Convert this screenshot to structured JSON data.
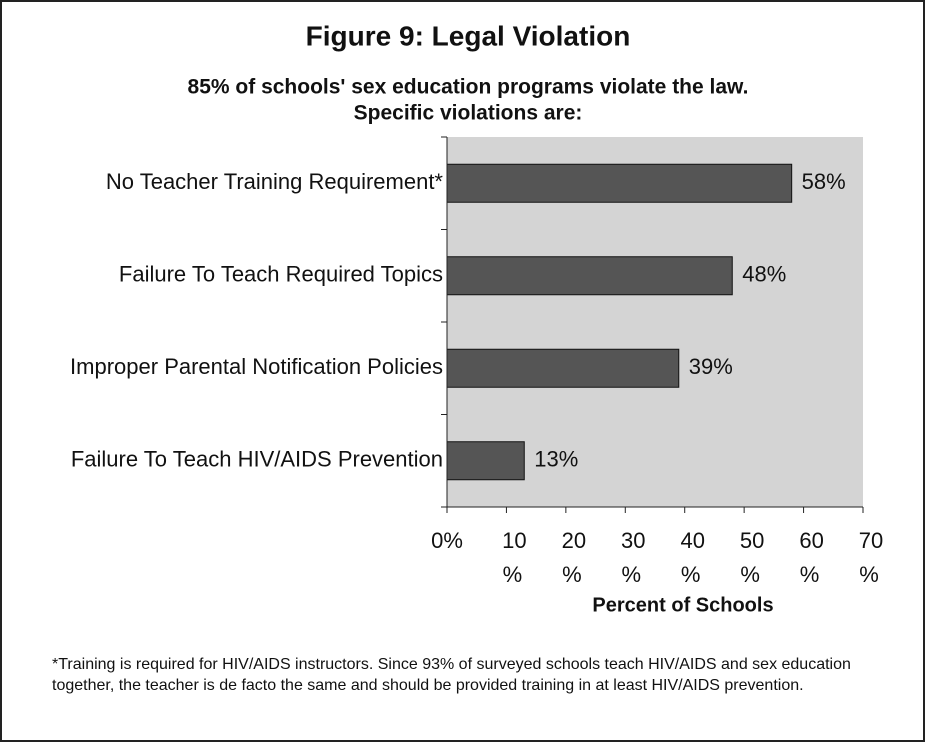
{
  "chart_data": {
    "type": "barh",
    "title": "Figure 9: Legal Violation",
    "subtitle": [
      "85% of schools' sex education programs violate the law.",
      "Specific violations are:"
    ],
    "categories": [
      "No Teacher Training Requirement*",
      "Failure To Teach Required Topics",
      "Improper Parental Notification Policies",
      "Failure To Teach HIV/AIDS Prevention"
    ],
    "values": [
      58,
      48,
      39,
      13
    ],
    "value_labels": [
      "58%",
      "48%",
      "39%",
      "13%"
    ],
    "color": "#555555",
    "plot_background": "#d4d4d4",
    "xlim": [
      0,
      70
    ],
    "xticks": [
      {
        "value": 0,
        "label": "0%"
      },
      {
        "value": 10,
        "label": "10%"
      },
      {
        "value": 20,
        "label": "20%"
      },
      {
        "value": 30,
        "label": "30%"
      },
      {
        "value": 40,
        "label": "40%"
      },
      {
        "value": 50,
        "label": "50%"
      },
      {
        "value": 60,
        "label": "60%"
      },
      {
        "value": 70,
        "label": "70%"
      }
    ],
    "xlabel": "Percent of Schools",
    "footnote": "*Training is required for HIV/AIDS instructors. Since 93% of surveyed schools teach HIV/AIDS and sex education together, the teacher is de facto the same and should be provided training in at least HIV/AIDS prevention."
  }
}
